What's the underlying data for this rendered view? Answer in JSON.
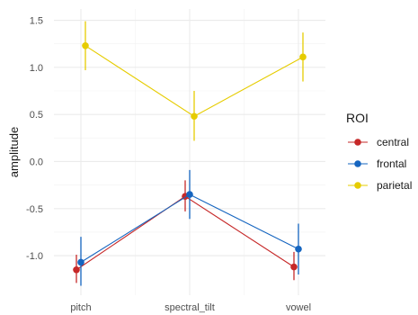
{
  "chart_data": {
    "type": "line",
    "title": "",
    "xlabel": "",
    "ylabel": "amplitude",
    "categories": [
      "pitch",
      "spectral_tilt",
      "vowel"
    ],
    "yticks": [
      1.5,
      1.0,
      0.5,
      0.0,
      -0.5,
      -1.0
    ],
    "ytick_labels": [
      "1.5",
      "1.0",
      "0.5",
      "0.0",
      "-0.5",
      "-1.0"
    ],
    "ylim": [
      -1.42,
      1.62
    ],
    "grid": true,
    "legend": {
      "title": "ROI",
      "position": "right"
    },
    "series": [
      {
        "name": "central",
        "color": "#c62828",
        "values": [
          -1.15,
          -0.37,
          -1.12
        ],
        "lower": [
          -1.29,
          -0.53,
          -1.26
        ],
        "upper": [
          -0.99,
          -0.2,
          -0.96
        ]
      },
      {
        "name": "frontal",
        "color": "#1565c0",
        "values": [
          -1.07,
          -0.35,
          -0.93
        ],
        "lower": [
          -1.32,
          -0.61,
          -1.2
        ],
        "upper": [
          -0.8,
          -0.09,
          -0.66
        ]
      },
      {
        "name": "parietal",
        "color": "#e6cc00",
        "values": [
          1.23,
          0.48,
          1.11
        ],
        "lower": [
          0.97,
          0.22,
          0.85
        ],
        "upper": [
          1.49,
          0.75,
          1.37
        ]
      }
    ]
  }
}
